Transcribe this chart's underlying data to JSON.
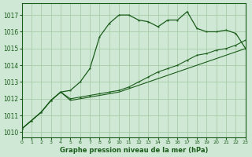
{
  "title": "Graphe pression niveau de la mer (hPa)",
  "background_color": "#cfe8d5",
  "grid_color": "#a8cca8",
  "line_color_dark": "#1a5c1a",
  "xlim": [
    0,
    23
  ],
  "ylim": [
    1009.7,
    1017.7
  ],
  "yticks": [
    1010,
    1011,
    1012,
    1013,
    1014,
    1015,
    1016,
    1017
  ],
  "xticks": [
    0,
    1,
    2,
    3,
    4,
    5,
    6,
    7,
    8,
    9,
    10,
    11,
    12,
    13,
    14,
    15,
    16,
    17,
    18,
    19,
    20,
    21,
    22,
    23
  ],
  "series_main": [
    1010.2,
    1010.7,
    1011.2,
    1011.9,
    1012.4,
    1012.5,
    1013.0,
    1013.8,
    1015.7,
    1016.5,
    1017.0,
    1017.0,
    1016.7,
    1016.6,
    1016.3,
    1016.7,
    1016.7,
    1017.2,
    1016.2,
    1016.0,
    1016.0,
    1016.1,
    1015.9,
    1015.0
  ],
  "series_mid": [
    1010.2,
    1010.7,
    1011.2,
    1011.9,
    1012.4,
    1012.0,
    1012.1,
    1012.2,
    1012.3,
    1012.4,
    1012.5,
    1012.7,
    1013.0,
    1013.3,
    1013.6,
    1013.8,
    1014.0,
    1014.3,
    1014.6,
    1014.7,
    1014.9,
    1015.0,
    1015.2,
    1015.5
  ],
  "series_low": [
    1010.2,
    1010.7,
    1011.2,
    1011.9,
    1012.4,
    1011.9,
    1012.0,
    1012.1,
    1012.2,
    1012.3,
    1012.4,
    1012.6,
    1012.8,
    1013.0,
    1013.2,
    1013.4,
    1013.6,
    1013.8,
    1014.0,
    1014.2,
    1014.4,
    1014.6,
    1014.8,
    1015.0
  ]
}
